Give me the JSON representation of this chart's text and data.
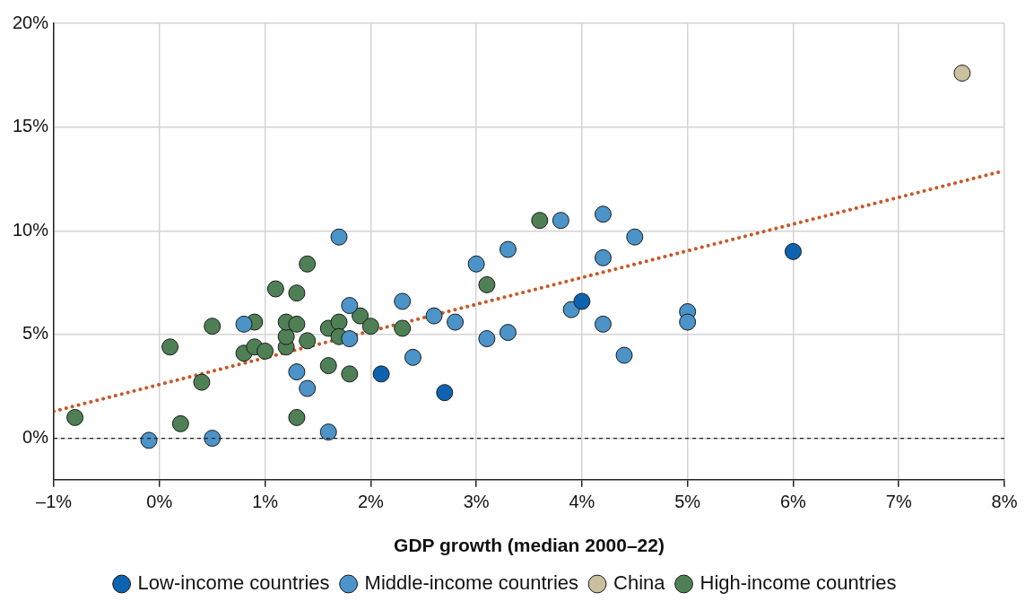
{
  "chart_data": {
    "type": "scatter",
    "xlabel": "GDP growth (median 2000–22)",
    "xlim": [
      -1,
      8
    ],
    "ylim": [
      -2,
      20
    ],
    "xticks": [
      {
        "value": -1,
        "label": "–1%"
      },
      {
        "value": 0,
        "label": "0%"
      },
      {
        "value": 1,
        "label": "1%"
      },
      {
        "value": 2,
        "label": "2%"
      },
      {
        "value": 3,
        "label": "3%"
      },
      {
        "value": 4,
        "label": "4%"
      },
      {
        "value": 5,
        "label": "5%"
      },
      {
        "value": 6,
        "label": "6%"
      },
      {
        "value": 7,
        "label": "7%"
      },
      {
        "value": 8,
        "label": "8%"
      }
    ],
    "yticks": [
      {
        "value": 0,
        "label": "0%"
      },
      {
        "value": 5,
        "label": "5%"
      },
      {
        "value": 10,
        "label": "10%"
      },
      {
        "value": 15,
        "label": "15%"
      },
      {
        "value": 20,
        "label": "20%"
      }
    ],
    "grid": true,
    "legend": "bottom",
    "marker": "circle",
    "ref_lines": [
      {
        "axis": "y",
        "value": 0,
        "color": "#222222",
        "line_style": "dashed"
      }
    ],
    "series": [
      {
        "type": "line",
        "color": "#c8582a",
        "line_style": "dotted",
        "marker": "none",
        "x": [
          -1,
          8
        ],
        "values": [
          1.3,
          12.9
        ]
      },
      {
        "name": "Low-income countries",
        "color": "#0e63b0",
        "x": [
          2.1,
          2.7,
          4.0,
          6.0
        ],
        "values": [
          3.1,
          2.2,
          6.6,
          9.0
        ]
      },
      {
        "name": "Middle-income countries",
        "color": "#4b93c8",
        "x": [
          -0.1,
          0.5,
          0.8,
          1.3,
          1.4,
          1.6,
          1.7,
          1.8,
          1.8,
          2.3,
          2.4,
          2.6,
          2.8,
          3.0,
          3.1,
          3.3,
          3.3,
          3.8,
          3.9,
          4.2,
          4.2,
          4.2,
          4.4,
          4.5,
          5.0,
          5.0
        ],
        "values": [
          -0.1,
          0.0,
          5.5,
          3.2,
          2.4,
          0.3,
          9.7,
          6.4,
          4.8,
          6.6,
          3.9,
          5.9,
          5.6,
          8.4,
          4.8,
          9.1,
          5.1,
          10.5,
          6.2,
          10.8,
          8.7,
          5.5,
          4.0,
          9.7,
          6.1,
          5.6
        ]
      },
      {
        "name": "China",
        "color": "#c9c0a0",
        "x": [
          7.6
        ],
        "values": [
          17.6
        ]
      },
      {
        "name": "High-income countries",
        "color": "#4f7f55",
        "x": [
          -0.8,
          0.1,
          0.2,
          0.4,
          0.5,
          0.8,
          0.9,
          0.9,
          1.0,
          1.1,
          1.2,
          1.2,
          1.2,
          1.3,
          1.3,
          1.3,
          1.4,
          1.4,
          1.6,
          1.6,
          1.7,
          1.7,
          1.8,
          1.9,
          2.0,
          2.3,
          3.1,
          3.6
        ],
        "values": [
          1.0,
          4.4,
          0.7,
          2.7,
          5.4,
          4.1,
          5.6,
          4.4,
          4.2,
          7.2,
          4.4,
          4.9,
          5.6,
          7.0,
          5.5,
          1.0,
          8.4,
          4.7,
          5.3,
          3.5,
          5.6,
          4.9,
          3.1,
          5.9,
          5.4,
          5.3,
          7.4,
          10.5
        ]
      }
    ]
  }
}
